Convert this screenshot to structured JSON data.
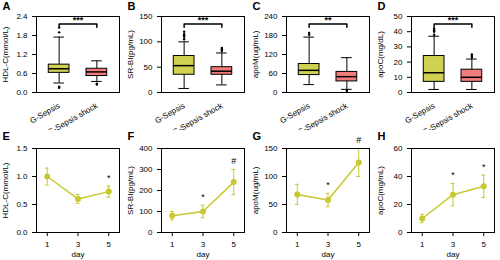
{
  "chart_data": [
    {
      "type": "box",
      "title": "A",
      "categories": [
        "G-Sepsis",
        "G-Sepsis shock"
      ],
      "boxes": [
        {
          "med": 0.75,
          "q1": 0.62,
          "q3": 0.88,
          "whislo": 0.3,
          "whishi": 1.75,
          "fliers": [
            0.18,
            0.15,
            1.9,
            2.05
          ]
        },
        {
          "med": 0.65,
          "q1": 0.52,
          "q3": 0.75,
          "whislo": 0.35,
          "whishi": 1.0,
          "fliers": [
            0.25,
            0.28
          ]
        }
      ],
      "colors": [
        "#C8C832",
        "#F06464"
      ],
      "ylabel": "HDL-C(mmol/L)",
      "ylim": [
        0.0,
        2.4
      ],
      "yticks": [
        {
          "value": 0.0,
          "label": "0.0"
        },
        0.6,
        1.2,
        1.8,
        2.4
      ],
      "significance": "***",
      "grid": false
    },
    {
      "type": "box",
      "title": "B",
      "categories": [
        "G-Sepsis",
        "G-Sepsis shock"
      ],
      "boxes": [
        {
          "med": 53,
          "q1": 35,
          "q3": 72,
          "whislo": 8,
          "whishi": 100,
          "fliers": [
            105,
            110,
            112,
            115,
            120
          ]
        },
        {
          "med": 42,
          "q1": 35,
          "q3": 50,
          "whislo": 15,
          "whishi": 78,
          "fliers": [
            82,
            85,
            88
          ]
        }
      ],
      "colors": [
        "#C8C832",
        "#F06464"
      ],
      "ylabel": "SR-BI(pg/mL)",
      "ylim": [
        0,
        150
      ],
      "yticks": [
        0,
        50,
        100,
        150
      ],
      "significance": "***",
      "grid": false
    },
    {
      "type": "box",
      "title": "C",
      "categories": [
        "G-Sepsis",
        "G-Sepsis shock"
      ],
      "boxes": [
        {
          "med": 70,
          "q1": 55,
          "q3": 90,
          "whislo": 25,
          "whishi": 175,
          "fliers": [
            182,
            188
          ]
        },
        {
          "med": 50,
          "q1": 35,
          "q3": 65,
          "whislo": 10,
          "whishi": 110,
          "fliers": [
            5,
            8
          ]
        }
      ],
      "colors": [
        "#C8C832",
        "#F06464"
      ],
      "ylabel": "apoM(ug/mL)",
      "ylim": [
        0,
        240
      ],
      "yticks": [
        0,
        60,
        120,
        180,
        240
      ],
      "significance": "**",
      "grid": false
    },
    {
      "type": "box",
      "title": "D",
      "categories": [
        "G-Sepsis",
        "G-Sepsis shock"
      ],
      "boxes": [
        {
          "med": 13,
          "q1": 7,
          "q3": 24,
          "whislo": 2,
          "whishi": 37,
          "fliers": [
            38,
            40,
            41,
            42
          ]
        },
        {
          "med": 10,
          "q1": 7,
          "q3": 15,
          "whislo": 2,
          "whishi": 22,
          "fliers": [
            23,
            24,
            25
          ]
        }
      ],
      "colors": [
        "#C8C832",
        "#F06464"
      ],
      "ylabel": "apoC(mg/dL)",
      "ylim": [
        0,
        50
      ],
      "yticks": [
        0,
        10,
        20,
        30,
        40,
        50
      ],
      "significance": "***",
      "grid": false
    },
    {
      "type": "line",
      "title": "E",
      "x": [
        1,
        3,
        5
      ],
      "values": [
        1.0,
        0.6,
        0.73
      ],
      "errors": [
        0.15,
        0.08,
        0.1
      ],
      "color": "#C8C832",
      "marker": "o",
      "xlabel": "day",
      "xlim": [
        0.3,
        5.7
      ],
      "xticks": [
        1,
        3,
        5
      ],
      "ylabel": "HDL-C(mmol/L)",
      "ylim": [
        0.0,
        1.5
      ],
      "yticks": [
        {
          "value": 0.0,
          "label": "0.0"
        },
        0.5,
        {
          "value": 1.0,
          "label": "1.0"
        },
        1.5
      ],
      "annotations": [
        {
          "x": 5,
          "text": "*"
        }
      ],
      "grid": false
    },
    {
      "type": "line",
      "title": "F",
      "x": [
        1,
        3,
        5
      ],
      "values": [
        80,
        100,
        240
      ],
      "errors": [
        20,
        30,
        60
      ],
      "color": "#C8C832",
      "marker": "o",
      "xlabel": "day",
      "xlim": [
        0.3,
        5.7
      ],
      "xticks": [
        1,
        3,
        5
      ],
      "ylabel": "SR-BI(pg/mL)",
      "ylim": [
        0,
        400
      ],
      "yticks": [
        0,
        100,
        200,
        300,
        400
      ],
      "annotations": [
        {
          "x": 3,
          "text": "*"
        },
        {
          "x": 5,
          "text": "#"
        }
      ],
      "grid": false
    },
    {
      "type": "line",
      "title": "G",
      "x": [
        1,
        3,
        5
      ],
      "values": [
        68,
        58,
        125
      ],
      "errors": [
        18,
        12,
        25
      ],
      "color": "#C8C832",
      "marker": "o",
      "xlabel": "day",
      "xlim": [
        0.3,
        5.7
      ],
      "xticks": [
        1,
        3,
        5
      ],
      "ylabel": "apoM(ug/mL)",
      "ylim": [
        0,
        150
      ],
      "yticks": [
        0,
        50,
        100,
        150
      ],
      "annotations": [
        {
          "x": 3,
          "text": "*"
        },
        {
          "x": 5,
          "text": "#"
        }
      ],
      "grid": false
    },
    {
      "type": "line",
      "title": "H",
      "x": [
        1,
        3,
        5
      ],
      "values": [
        10,
        27,
        33
      ],
      "errors": [
        3,
        8,
        8
      ],
      "color": "#C8C832",
      "marker": "o",
      "xlabel": "day",
      "xlim": [
        0.3,
        5.7
      ],
      "xticks": [
        1,
        3,
        5
      ],
      "ylabel": "apoC(mg/mL)",
      "ylim": [
        0,
        60
      ],
      "yticks": [
        0,
        20,
        40,
        60
      ],
      "annotations": [
        {
          "x": 3,
          "text": "*"
        },
        {
          "x": 5,
          "text": "*"
        }
      ],
      "grid": false
    }
  ]
}
